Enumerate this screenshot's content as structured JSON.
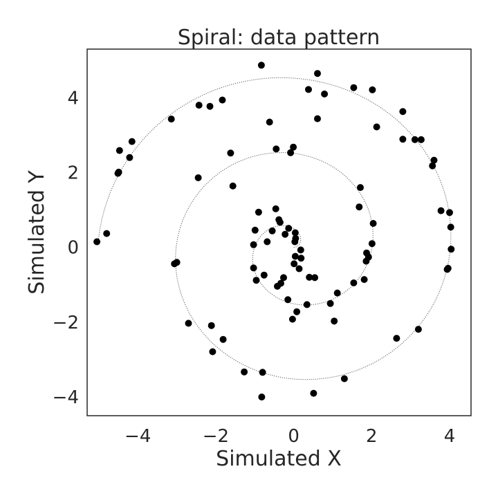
{
  "chart_data": {
    "type": "scatter",
    "title": "Spiral: data pattern",
    "xlabel": "Simulated X",
    "ylabel": "Simulated Y",
    "xlim": [
      -5.3,
      4.55
    ],
    "ylim": [
      -4.5,
      5.3
    ],
    "xticks": [
      -4,
      -2,
      0,
      2,
      4
    ],
    "yticks": [
      -4,
      -2,
      0,
      2,
      4
    ],
    "xtick_labels": [
      "−4",
      "−2",
      "0",
      "2",
      "4"
    ],
    "ytick_labels": [
      "−4",
      "−2",
      "0",
      "2",
      "4"
    ],
    "grid": false,
    "colors": {
      "points": "#000000",
      "curve": "#555555",
      "frame": "#262626"
    },
    "curve": {
      "shape": "archimedean-spiral",
      "a": 0.32,
      "theta_max": 15.7
    },
    "series": [
      {
        "values": [
          {
            "x": -0.83,
            "y": 4.87
          },
          {
            "x": 0.61,
            "y": 4.65
          },
          {
            "x": 0.38,
            "y": 4.22
          },
          {
            "x": 0.79,
            "y": 4.1
          },
          {
            "x": 1.54,
            "y": 4.27
          },
          {
            "x": 2.02,
            "y": 4.21
          },
          {
            "x": -1.83,
            "y": 3.94
          },
          {
            "x": -2.43,
            "y": 3.8
          },
          {
            "x": -2.15,
            "y": 3.77
          },
          {
            "x": -3.14,
            "y": 3.43
          },
          {
            "x": -0.62,
            "y": 3.35
          },
          {
            "x": 0.61,
            "y": 3.44
          },
          {
            "x": 2.8,
            "y": 3.63
          },
          {
            "x": 2.13,
            "y": 3.22
          },
          {
            "x": -4.15,
            "y": 2.83
          },
          {
            "x": -4.47,
            "y": 2.59
          },
          {
            "x": -4.21,
            "y": 2.4
          },
          {
            "x": -4.49,
            "y": 2.01
          },
          {
            "x": -4.51,
            "y": 1.98
          },
          {
            "x": -0.45,
            "y": 2.63
          },
          {
            "x": -0.01,
            "y": 2.68
          },
          {
            "x": -0.08,
            "y": 2.53
          },
          {
            "x": -1.62,
            "y": 2.52
          },
          {
            "x": 2.8,
            "y": 2.89
          },
          {
            "x": 3.11,
            "y": 2.88
          },
          {
            "x": 3.27,
            "y": 2.88
          },
          {
            "x": 3.6,
            "y": 2.33
          },
          {
            "x": 3.56,
            "y": 2.18
          },
          {
            "x": -2.45,
            "y": 1.86
          },
          {
            "x": -1.56,
            "y": 1.64
          },
          {
            "x": 1.71,
            "y": 1.6
          },
          {
            "x": 1.68,
            "y": 1.08
          },
          {
            "x": 3.78,
            "y": 0.98
          },
          {
            "x": 4.0,
            "y": 0.93
          },
          {
            "x": 4.03,
            "y": 0.54
          },
          {
            "x": 4.04,
            "y": -0.05
          },
          {
            "x": 3.96,
            "y": -0.56
          },
          {
            "x": 3.94,
            "y": -0.59
          },
          {
            "x": -5.05,
            "y": 0.15
          },
          {
            "x": -4.8,
            "y": 0.37
          },
          {
            "x": -0.9,
            "y": 0.94
          },
          {
            "x": -0.46,
            "y": 1.03
          },
          {
            "x": -0.38,
            "y": 0.74
          },
          {
            "x": -0.35,
            "y": 0.67
          },
          {
            "x": -0.55,
            "y": 0.44
          },
          {
            "x": -0.99,
            "y": 0.46
          },
          {
            "x": -0.13,
            "y": 0.51
          },
          {
            "x": -0.22,
            "y": 0.35
          },
          {
            "x": 0.04,
            "y": 0.39
          },
          {
            "x": 0.05,
            "y": 0.24
          },
          {
            "x": 0.03,
            "y": 0.15
          },
          {
            "x": -0.68,
            "y": 0.15
          },
          {
            "x": -1.03,
            "y": 0.07
          },
          {
            "x": 0.18,
            "y": -0.07
          },
          {
            "x": 0.04,
            "y": -0.24
          },
          {
            "x": 0.19,
            "y": -0.29
          },
          {
            "x": 0.01,
            "y": -0.44
          },
          {
            "x": 0.14,
            "y": -0.57
          },
          {
            "x": 2.04,
            "y": 0.64
          },
          {
            "x": 2.01,
            "y": 0.1
          },
          {
            "x": 1.87,
            "y": -0.15
          },
          {
            "x": 1.92,
            "y": -0.26
          },
          {
            "x": 1.86,
            "y": -0.37
          },
          {
            "x": 1.81,
            "y": -0.86
          },
          {
            "x": 1.54,
            "y": -0.95
          },
          {
            "x": 1.12,
            "y": -1.22
          },
          {
            "x": 0.94,
            "y": -1.5
          },
          {
            "x": 1.04,
            "y": -1.97
          },
          {
            "x": 0.4,
            "y": -0.8
          },
          {
            "x": 0.54,
            "y": -0.81
          },
          {
            "x": 0.34,
            "y": -1.53
          },
          {
            "x": 0.08,
            "y": -1.72
          },
          {
            "x": -0.15,
            "y": -1.4
          },
          {
            "x": -0.03,
            "y": -1.92
          },
          {
            "x": -0.76,
            "y": -0.74
          },
          {
            "x": -1.03,
            "y": -0.55
          },
          {
            "x": -0.96,
            "y": -0.88
          },
          {
            "x": -0.26,
            "y": -0.81
          },
          {
            "x": -0.33,
            "y": -0.96
          },
          {
            "x": -0.42,
            "y": -1.04
          },
          {
            "x": -3.0,
            "y": -0.4
          },
          {
            "x": -3.06,
            "y": -0.44
          },
          {
            "x": -2.7,
            "y": -2.03
          },
          {
            "x": -2.11,
            "y": -2.09
          },
          {
            "x": -1.81,
            "y": -2.46
          },
          {
            "x": -2.08,
            "y": -2.79
          },
          {
            "x": -1.27,
            "y": -3.33
          },
          {
            "x": -0.8,
            "y": -3.34
          },
          {
            "x": -0.82,
            "y": -4.0
          },
          {
            "x": 0.51,
            "y": -3.9
          },
          {
            "x": 1.3,
            "y": -3.51
          },
          {
            "x": 2.64,
            "y": -2.43
          },
          {
            "x": 3.2,
            "y": -2.19
          }
        ]
      }
    ]
  }
}
